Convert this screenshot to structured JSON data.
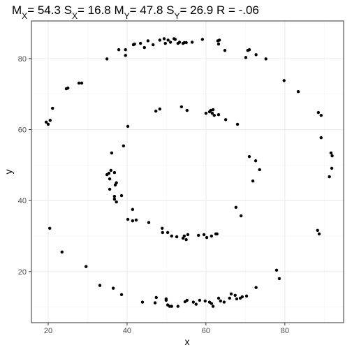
{
  "chart_data": {
    "type": "scatter",
    "title": [
      {
        "text": "M",
        "sub": false
      },
      {
        "text": "X",
        "sub": true
      },
      {
        "text": "= 54.3 S",
        "sub": false
      },
      {
        "text": "X",
        "sub": true
      },
      {
        "text": "= 16.8 M",
        "sub": false
      },
      {
        "text": "Y",
        "sub": true
      },
      {
        "text": "= 47.8 S",
        "sub": false
      },
      {
        "text": "Y",
        "sub": true
      },
      {
        "text": "= 26.9 R = -.06",
        "sub": false
      }
    ],
    "x_label": "x",
    "y_label": "y",
    "xlim": [
      15.75,
      94.9
    ],
    "ylim": [
      5.6,
      90.6
    ],
    "xticks": [
      20,
      40,
      60,
      80
    ],
    "yticks": [
      20,
      40,
      60,
      80
    ],
    "xminor": [
      30,
      50,
      70,
      90
    ],
    "yminor": [
      10,
      30,
      50,
      70,
      90
    ],
    "grid": true,
    "color": "#000000",
    "x": [
      34.9,
      37.9,
      39.6,
      39.6,
      41.6,
      41.9,
      43.4,
      44.4,
      45.3,
      46.6,
      48.3,
      49.4,
      49.7,
      50.4,
      51.0,
      51.9,
      52.2,
      52.9,
      53.3,
      54.2,
      54.5,
      55.0,
      56.5,
      59.1,
      63.0,
      63.4,
      63.2,
      64.8,
      70.1,
      70.6,
      71.0,
      72.7,
      75.2,
      79.8,
      83.4,
      24.6,
      25.0,
      27.8,
      28.5,
      21.1,
      20.5,
      19.5,
      20.0,
      88.5,
      89.2,
      89.2,
      91.7,
      92.0,
      91.9,
      91.3,
      20.4,
      23.5,
      29.6,
      33.1,
      36.5,
      38.6,
      43.9,
      47.1,
      47.4,
      49.9,
      49.9,
      50.3,
      50.8,
      51.3,
      52.9,
      54.7,
      55.2,
      56.8,
      57.5,
      58.4,
      59.8,
      60.9,
      61.4,
      61.8,
      63.2,
      63.7,
      64.6,
      66.0,
      66.4,
      67.4,
      67.8,
      68.7,
      69.2,
      70.3,
      72.7,
      77.9,
      78.6,
      88.3,
      88.7,
      47.3,
      48.3,
      53.8,
      55.2,
      40.2,
      60.0,
      60.9,
      61.2,
      61.8,
      61.6,
      62.1,
      63.2,
      65.0,
      68.0,
      39.1,
      36.1,
      35.4,
      35.9,
      34.9,
      35.6,
      36.8,
      37.3,
      37.0,
      35.6,
      36.8,
      36.8,
      37.3,
      38.6,
      40.2,
      41.4,
      41.4,
      42.3,
      45.5,
      48.9,
      49.0,
      50.3,
      51.3,
      52.6,
      54.2,
      54.5,
      55.0,
      55.4,
      58.1,
      59.5,
      60.2,
      61.4,
      62.5,
      62.8,
      67.6,
      68.9,
      71.0,
      72.6,
      73.6,
      71.9
    ],
    "values": [
      79.9,
      82.5,
      82.5,
      80.9,
      83.9,
      84.1,
      84.3,
      83.1,
      85.0,
      83.9,
      85.2,
      85.6,
      84.3,
      85.2,
      84.6,
      85.6,
      85.4,
      84.3,
      84.6,
      84.3,
      84.5,
      84.5,
      84.6,
      85.4,
      85.0,
      85.2,
      84.1,
      82.3,
      80.3,
      82.3,
      82.5,
      81.1,
      79.9,
      73.8,
      70.7,
      71.5,
      71.7,
      73.1,
      73.1,
      66.0,
      62.6,
      62.1,
      61.5,
      64.8,
      64.0,
      57.7,
      53.4,
      52.6,
      49.1,
      46.7,
      32.2,
      25.5,
      21.4,
      16.1,
      15.3,
      13.5,
      11.4,
      11.2,
      12.7,
      12.3,
      11.9,
      10.6,
      10.2,
      10.2,
      10.2,
      11.5,
      11.9,
      11.4,
      10.8,
      11.9,
      11.7,
      11.4,
      11.0,
      10.2,
      12.5,
      11.7,
      11.4,
      12.5,
      13.7,
      13.3,
      12.3,
      12.5,
      12.9,
      13.1,
      15.5,
      20.4,
      18.0,
      31.6,
      30.6,
      65.2,
      65.8,
      66.4,
      65.4,
      60.9,
      64.6,
      65.0,
      65.4,
      65.6,
      64.6,
      64.0,
      64.2,
      62.8,
      61.5,
      55.4,
      53.4,
      47.7,
      48.5,
      47.3,
      46.1,
      47.9,
      45.0,
      44.4,
      43.2,
      41.2,
      40.4,
      39.6,
      41.4,
      34.7,
      37.5,
      34.3,
      34.5,
      33.8,
      32.2,
      31.0,
      31.0,
      30.0,
      29.8,
      29.4,
      30.0,
      29.0,
      30.4,
      30.2,
      30.4,
      29.6,
      30.0,
      30.6,
      30.6,
      38.1,
      35.7,
      52.4,
      51.2,
      48.7,
      45.5
    ]
  }
}
